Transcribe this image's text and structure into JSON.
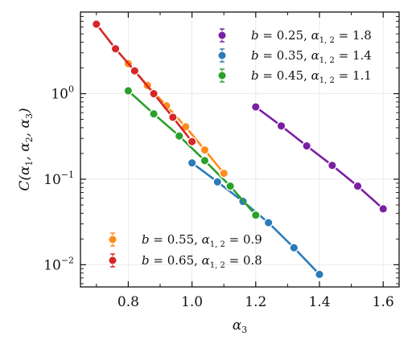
{
  "chart_data": {
    "type": "line",
    "xlabel": "α3",
    "ylabel": "C(α1, α2, α3)",
    "xlim": [
      0.65,
      1.65
    ],
    "ylim": [
      0.0055,
      9.0
    ],
    "yscale": "log",
    "x_ticks": [
      0.8,
      1.0,
      1.2,
      1.4,
      1.6
    ],
    "x_tick_labels": [
      "0.8",
      "1.0",
      "1.2",
      "1.4",
      "1.6"
    ],
    "y_ticks": [
      0.01,
      0.1,
      1
    ],
    "y_tick_labels": [
      {
        "base": "10",
        "exp": "−2"
      },
      {
        "base": "10",
        "exp": "−1"
      },
      {
        "base": "10",
        "exp": "0"
      }
    ],
    "grid": true,
    "legend_groups": [
      {
        "placement": "top-right",
        "series": [
          0,
          1,
          2
        ]
      },
      {
        "placement": "bottom-left",
        "series": [
          3,
          4
        ]
      }
    ],
    "series": [
      {
        "name": "b = 0.25, α1,2 = 1.8",
        "color": "#7b1fa2",
        "x": [
          1.2,
          1.28,
          1.36,
          1.44,
          1.52,
          1.6
        ],
        "y": [
          0.7,
          0.42,
          0.245,
          0.145,
          0.083,
          0.045
        ]
      },
      {
        "name": "b = 0.35, α1,2 = 1.4",
        "color": "#2b7bba",
        "x": [
          1.0,
          1.08,
          1.16,
          1.24,
          1.32,
          1.4
        ],
        "y": [
          0.155,
          0.093,
          0.055,
          0.031,
          0.0158,
          0.0077
        ]
      },
      {
        "name": "b = 0.45, α1,2 = 1.1",
        "color": "#2ca02c",
        "x": [
          0.8,
          0.88,
          0.96,
          1.04,
          1.12,
          1.2
        ],
        "y": [
          1.08,
          0.58,
          0.32,
          0.165,
          0.083,
          0.038
        ]
      },
      {
        "name": "b = 0.55, α1,2 = 0.9",
        "color": "#ff8c1a",
        "x": [
          0.8,
          0.86,
          0.92,
          0.98,
          1.04,
          1.1
        ],
        "y": [
          2.25,
          1.25,
          0.72,
          0.41,
          0.22,
          0.117
        ]
      },
      {
        "name": "b = 0.65, α1,2 = 0.8",
        "color": "#d62728",
        "x": [
          0.7,
          0.76,
          0.82,
          0.88,
          0.94,
          1.0
        ],
        "y": [
          6.5,
          3.35,
          1.85,
          1.0,
          0.53,
          0.275
        ]
      }
    ]
  }
}
